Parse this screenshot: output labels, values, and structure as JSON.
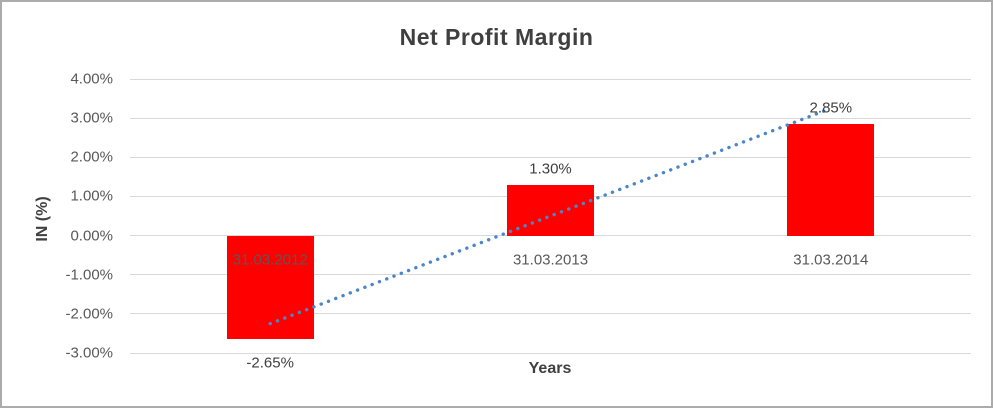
{
  "chart_data": {
    "type": "bar",
    "title": "Net Profit Margin",
    "xlabel": "Years",
    "ylabel": "IN (%)",
    "categories": [
      "31.03.2012",
      "31.03.2013",
      "31.03.2014"
    ],
    "series": [
      {
        "name": "Net Profit Margin",
        "values": [
          -2.65,
          1.3,
          2.85
        ]
      }
    ],
    "values": [
      -2.65,
      1.3,
      2.85
    ],
    "data_labels": [
      "-2.65%",
      "1.30%",
      "2.85%"
    ],
    "y_ticks": [
      {
        "value": 4,
        "label": "4.00%"
      },
      {
        "value": 3,
        "label": "3.00%"
      },
      {
        "value": 2,
        "label": "2.00%"
      },
      {
        "value": 1,
        "label": "1.00%"
      },
      {
        "value": 0,
        "label": "0.00%"
      },
      {
        "value": -1,
        "label": "-1.00%"
      },
      {
        "value": -2,
        "label": "-2.00%"
      },
      {
        "value": -3,
        "label": "-3.00%"
      }
    ],
    "ylim": [
      -3,
      4
    ],
    "grid": true,
    "legend_position": "none",
    "bar_color": "#FF0000",
    "gridline_color": "#D9D9D9",
    "trendline": {
      "style": "dotted",
      "color": "#4A86C8",
      "start_value": -2.25,
      "end_value": 3.25
    }
  }
}
